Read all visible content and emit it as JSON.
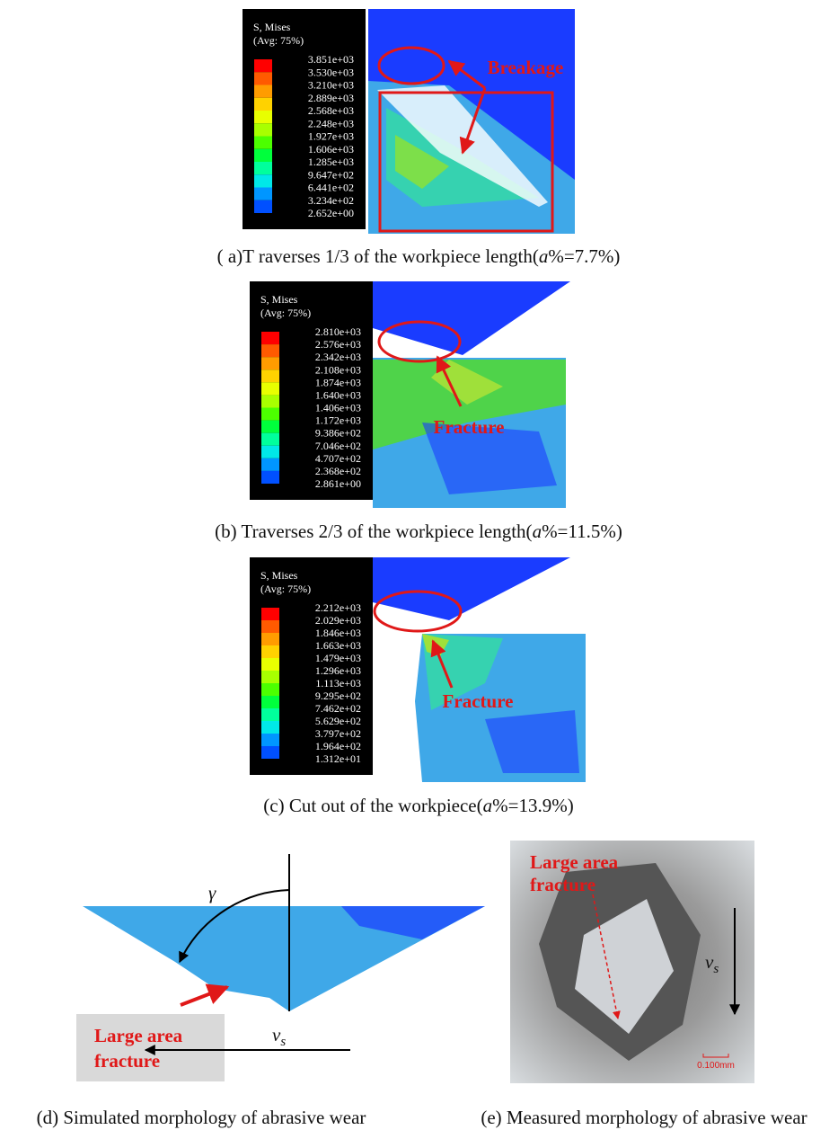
{
  "panels": [
    {
      "legend_title": [
        "S, Mises",
        "(Avg: 75%)"
      ],
      "legend_values": [
        "3.851e+03",
        "3.530e+03",
        "3.210e+03",
        "2.889e+03",
        "2.568e+03",
        "2.248e+03",
        "1.927e+03",
        "1.606e+03",
        "1.285e+03",
        "9.647e+02",
        "6.441e+02",
        "3.234e+02",
        "2.652e+00"
      ],
      "annotation": "Breakage",
      "caption": [
        "( a)T raverses 1/3 of the workpiece length(",
        "a",
        "%=7.7%)"
      ]
    },
    {
      "legend_title": [
        "S, Mises",
        "(Avg: 75%)"
      ],
      "legend_values": [
        "2.810e+03",
        "2.576e+03",
        "2.342e+03",
        "2.108e+03",
        "1.874e+03",
        "1.640e+03",
        "1.406e+03",
        "1.172e+03",
        "9.386e+02",
        "7.046e+02",
        "4.707e+02",
        "2.368e+02",
        "2.861e+00"
      ],
      "annotation": "Fracture",
      "caption": [
        "(b)  Traverses 2/3 of the workpiece length(",
        "a",
        "%=11.5%)"
      ]
    },
    {
      "legend_title": [
        "S, Mises",
        "(Avg: 75%)"
      ],
      "legend_values": [
        "2.212e+03",
        "2.029e+03",
        "1.846e+03",
        "1.663e+03",
        "1.479e+03",
        "1.296e+03",
        "1.113e+03",
        "9.295e+02",
        "7.462e+02",
        "5.629e+02",
        "3.797e+02",
        "1.964e+02",
        "1.312e+01"
      ],
      "annotation": "Fracture",
      "caption": [
        "(c)  Cut out of the workpiece(",
        "a",
        "%=13.9%)"
      ]
    }
  ],
  "simulated": {
    "angle": "γ",
    "label": [
      "Large area",
      "fracture"
    ],
    "velocity": [
      "v",
      "s"
    ],
    "caption": "(d) Simulated  morphology of abrasive wear"
  },
  "measured": {
    "label": [
      "Large area",
      "fracture"
    ],
    "velocity": [
      "v",
      "s"
    ],
    "scale": "0.100mm",
    "caption": "(e)  Measured morphology of abrasive wear"
  }
}
